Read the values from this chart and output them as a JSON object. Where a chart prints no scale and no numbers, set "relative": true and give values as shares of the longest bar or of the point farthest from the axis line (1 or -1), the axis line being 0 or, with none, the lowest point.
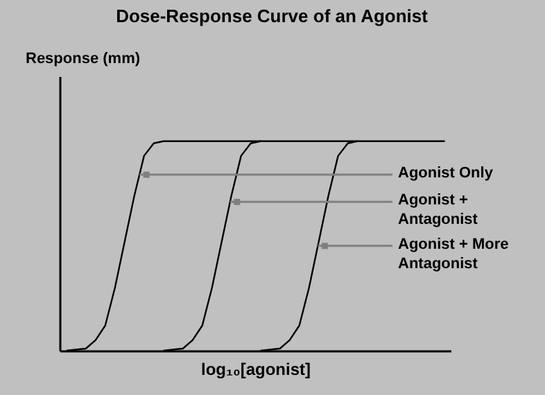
{
  "chart_data": {
    "type": "line",
    "title": "Dose-Response Curve of an Agonist",
    "xlabel": "log₁₀[agonist]",
    "ylabel": "Response (mm)",
    "relative": true,
    "marker": "none",
    "line_style": "solid",
    "categories": [
      null,
      null,
      null,
      null,
      null,
      null,
      null,
      null,
      null,
      null,
      null,
      null,
      null,
      null,
      null,
      null,
      null,
      null,
      null,
      null,
      null,
      null,
      null,
      null,
      null,
      null,
      null,
      null,
      null,
      null,
      null,
      null,
      null,
      null,
      null,
      null,
      null,
      null,
      null,
      null
    ],
    "series": [
      {
        "color": "#000000",
        "values": [
          0,
          0.005,
          0.01,
          0.05,
          0.12,
          0.3,
          0.52,
          0.74,
          0.93,
          0.99,
          1,
          1,
          1,
          1,
          1,
          1,
          1,
          1,
          1,
          1,
          1,
          null,
          null,
          null,
          null,
          null,
          null,
          null,
          null,
          null,
          null,
          null,
          null,
          null,
          null,
          null,
          null,
          null,
          null,
          null
        ]
      },
      {
        "color": "#000000",
        "values": [
          null,
          null,
          null,
          null,
          null,
          null,
          null,
          null,
          null,
          null,
          0,
          0.005,
          0.01,
          0.05,
          0.12,
          0.3,
          0.52,
          0.74,
          0.93,
          0.99,
          1,
          1,
          1,
          1,
          1,
          1,
          1,
          1,
          1,
          1,
          1,
          null,
          null,
          null,
          null,
          null,
          null,
          null,
          null,
          null
        ]
      },
      {
        "color": "#000000",
        "values": [
          null,
          null,
          null,
          null,
          null,
          null,
          null,
          null,
          null,
          null,
          null,
          null,
          null,
          null,
          null,
          null,
          null,
          null,
          null,
          null,
          0,
          0.005,
          0.01,
          0.05,
          0.12,
          0.3,
          0.52,
          0.74,
          0.93,
          0.99,
          1,
          1,
          1,
          1,
          1,
          1,
          1,
          1,
          1,
          1
        ]
      }
    ],
    "annotations": [
      "Agonist Only",
      "Agonist +\nAntagonist",
      "Agonist + More\nAntagonist"
    ]
  }
}
